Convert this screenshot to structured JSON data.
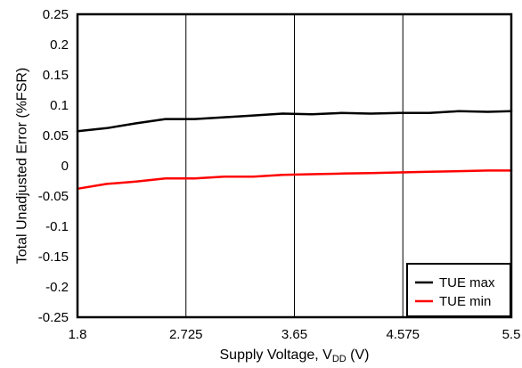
{
  "chart_data": {
    "type": "line",
    "xlabel": "Supply Voltage, V",
    "xlabel_subscript": "DD",
    "xlabel_suffix": " (V)",
    "ylabel": "Total Unadjusted Error (%FSR)",
    "xlim": [
      1.8,
      5.5
    ],
    "ylim": [
      -0.25,
      0.25
    ],
    "x_ticks": [
      1.8,
      2.725,
      3.65,
      4.575,
      5.5
    ],
    "x_tick_labels": [
      "1.8",
      "2.725",
      "3.65",
      "4.575",
      "5.5"
    ],
    "y_ticks": [
      0.25,
      0.2,
      0.15,
      0.1,
      0.05,
      0,
      -0.05,
      -0.1,
      -0.15,
      -0.2,
      -0.25
    ],
    "y_tick_labels": [
      "0.25",
      "0.2",
      "0.15",
      "0.1",
      "0.05",
      "0",
      "-0.05",
      "-0.1",
      "-0.15",
      "-0.2",
      "-0.25"
    ],
    "grid": true,
    "legend_position": "bottom-right",
    "series": [
      {
        "name": "TUE max",
        "color": "#000000",
        "x": [
          1.8,
          2.05,
          2.3,
          2.55,
          2.8,
          3.05,
          3.3,
          3.55,
          3.8,
          4.05,
          4.3,
          4.55,
          4.8,
          5.05,
          5.3,
          5.5
        ],
        "y": [
          0.057,
          0.062,
          0.07,
          0.077,
          0.077,
          0.08,
          0.083,
          0.086,
          0.085,
          0.087,
          0.086,
          0.087,
          0.087,
          0.09,
          0.089,
          0.09
        ]
      },
      {
        "name": "TUE min",
        "color": "#ff0000",
        "x": [
          1.8,
          2.05,
          2.3,
          2.55,
          2.8,
          3.05,
          3.3,
          3.55,
          3.8,
          4.05,
          4.3,
          4.55,
          4.8,
          5.05,
          5.3,
          5.5
        ],
        "y": [
          -0.038,
          -0.03,
          -0.026,
          -0.021,
          -0.021,
          -0.018,
          -0.018,
          -0.015,
          -0.014,
          -0.013,
          -0.012,
          -0.011,
          -0.01,
          -0.009,
          -0.008,
          -0.008
        ]
      }
    ]
  }
}
